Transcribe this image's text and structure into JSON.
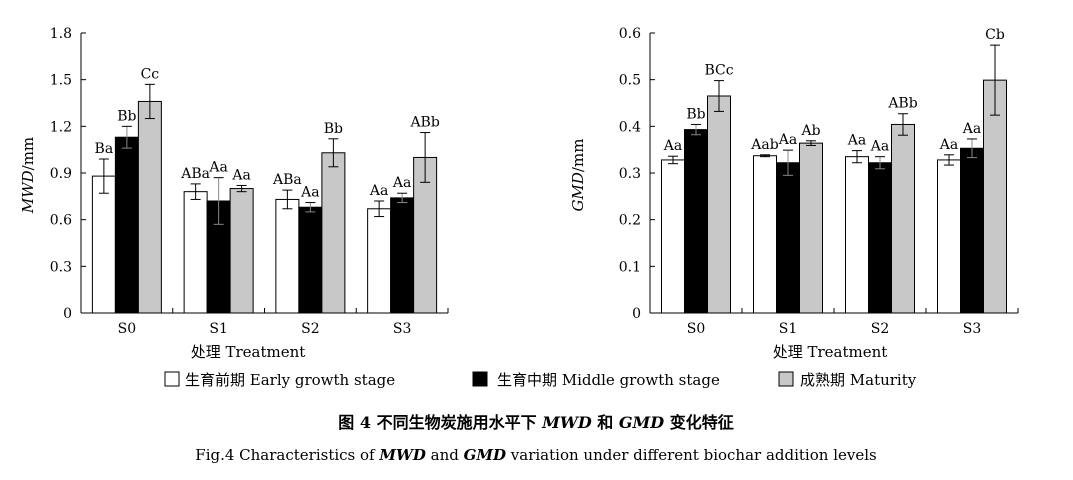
{
  "chart_data": [
    {
      "type": "bar",
      "id": "mwd",
      "title": "",
      "categories": [
        "S0",
        "S1",
        "S2",
        "S3"
      ],
      "xlabel": "处理 Treatment",
      "ylabel_var": "MWD",
      "ylabel_unit": "/mm",
      "ylim": [
        0,
        1.8
      ],
      "yticks": [
        "0",
        "0.3",
        "0.6",
        "0.9",
        "1.2",
        "1.5",
        "1.8"
      ],
      "tick_values": [
        0,
        0.3,
        0.6,
        0.9,
        1.2,
        1.5,
        1.8
      ],
      "series": [
        {
          "name": "生育前期 Early growth stage",
          "values": [
            0.88,
            0.78,
            0.73,
            0.67
          ],
          "errors": [
            0.11,
            0.05,
            0.06,
            0.05
          ],
          "labels": [
            "Ba",
            "ABa",
            "ABa",
            "Aa"
          ]
        },
        {
          "name": "生育中期 Middle growth stage",
          "values": [
            1.13,
            0.72,
            0.68,
            0.74
          ],
          "errors": [
            0.07,
            0.15,
            0.03,
            0.03
          ],
          "labels": [
            "Bb",
            "Aa",
            "Aa",
            "Aa"
          ]
        },
        {
          "name": "成熟期 Maturity",
          "values": [
            1.36,
            0.8,
            1.03,
            1.0
          ],
          "errors": [
            0.11,
            0.02,
            0.09,
            0.16
          ],
          "labels": [
            "Cc",
            "Aa",
            "Bb",
            "ABb"
          ]
        }
      ]
    },
    {
      "type": "bar",
      "id": "gmd",
      "title": "",
      "categories": [
        "S0",
        "S1",
        "S2",
        "S3"
      ],
      "xlabel": "处理 Treatment",
      "ylabel_var": "GMD",
      "ylabel_unit": "/mm",
      "ylim": [
        0,
        0.6
      ],
      "yticks": [
        "0",
        "0.1",
        "0.2",
        "0.3",
        "0.4",
        "0.5",
        "0.6"
      ],
      "tick_values": [
        0,
        0.1,
        0.2,
        0.3,
        0.4,
        0.5,
        0.6
      ],
      "series": [
        {
          "name": "生育前期 Early growth stage",
          "values": [
            0.328,
            0.337,
            0.335,
            0.328
          ],
          "errors": [
            0.008,
            0.002,
            0.013,
            0.011
          ],
          "labels": [
            "Aa",
            "Aab",
            "Aa",
            "Aa"
          ]
        },
        {
          "name": "生育中期 Middle growth stage",
          "values": [
            0.393,
            0.322,
            0.322,
            0.353
          ],
          "errors": [
            0.011,
            0.027,
            0.013,
            0.02
          ],
          "labels": [
            "Bb",
            "Aa",
            "Aa",
            "Aa"
          ]
        },
        {
          "name": "成熟期 Maturity",
          "values": [
            0.465,
            0.364,
            0.404,
            0.499
          ],
          "errors": [
            0.033,
            0.005,
            0.023,
            0.075
          ],
          "labels": [
            "BCc",
            "Ab",
            "ABb",
            "Cb"
          ]
        }
      ]
    }
  ],
  "legend": {
    "items": [
      {
        "label": "生育前期 Early growth stage",
        "color": "#ffffff"
      },
      {
        "label": "生育中期 Middle growth stage",
        "color": "#000000"
      },
      {
        "label": "成熟期 Maturity",
        "color": "#c8c8c8"
      }
    ]
  },
  "caption": {
    "cn_prefix": "图 4   不同生物炭施用水平下 ",
    "cn_var1": "MWD",
    "cn_mid": " 和 ",
    "cn_var2": "GMD",
    "cn_suffix": " 变化特征",
    "en_prefix": "Fig.4   Characteristics of ",
    "en_var1": "MWD",
    "en_mid": " and ",
    "en_var2": "GMD",
    "en_suffix": " variation under different biochar addition levels"
  },
  "colors": {
    "early": "#ffffff",
    "middle": "#000000",
    "maturity": "#c8c8c8",
    "stroke": "#000000"
  }
}
